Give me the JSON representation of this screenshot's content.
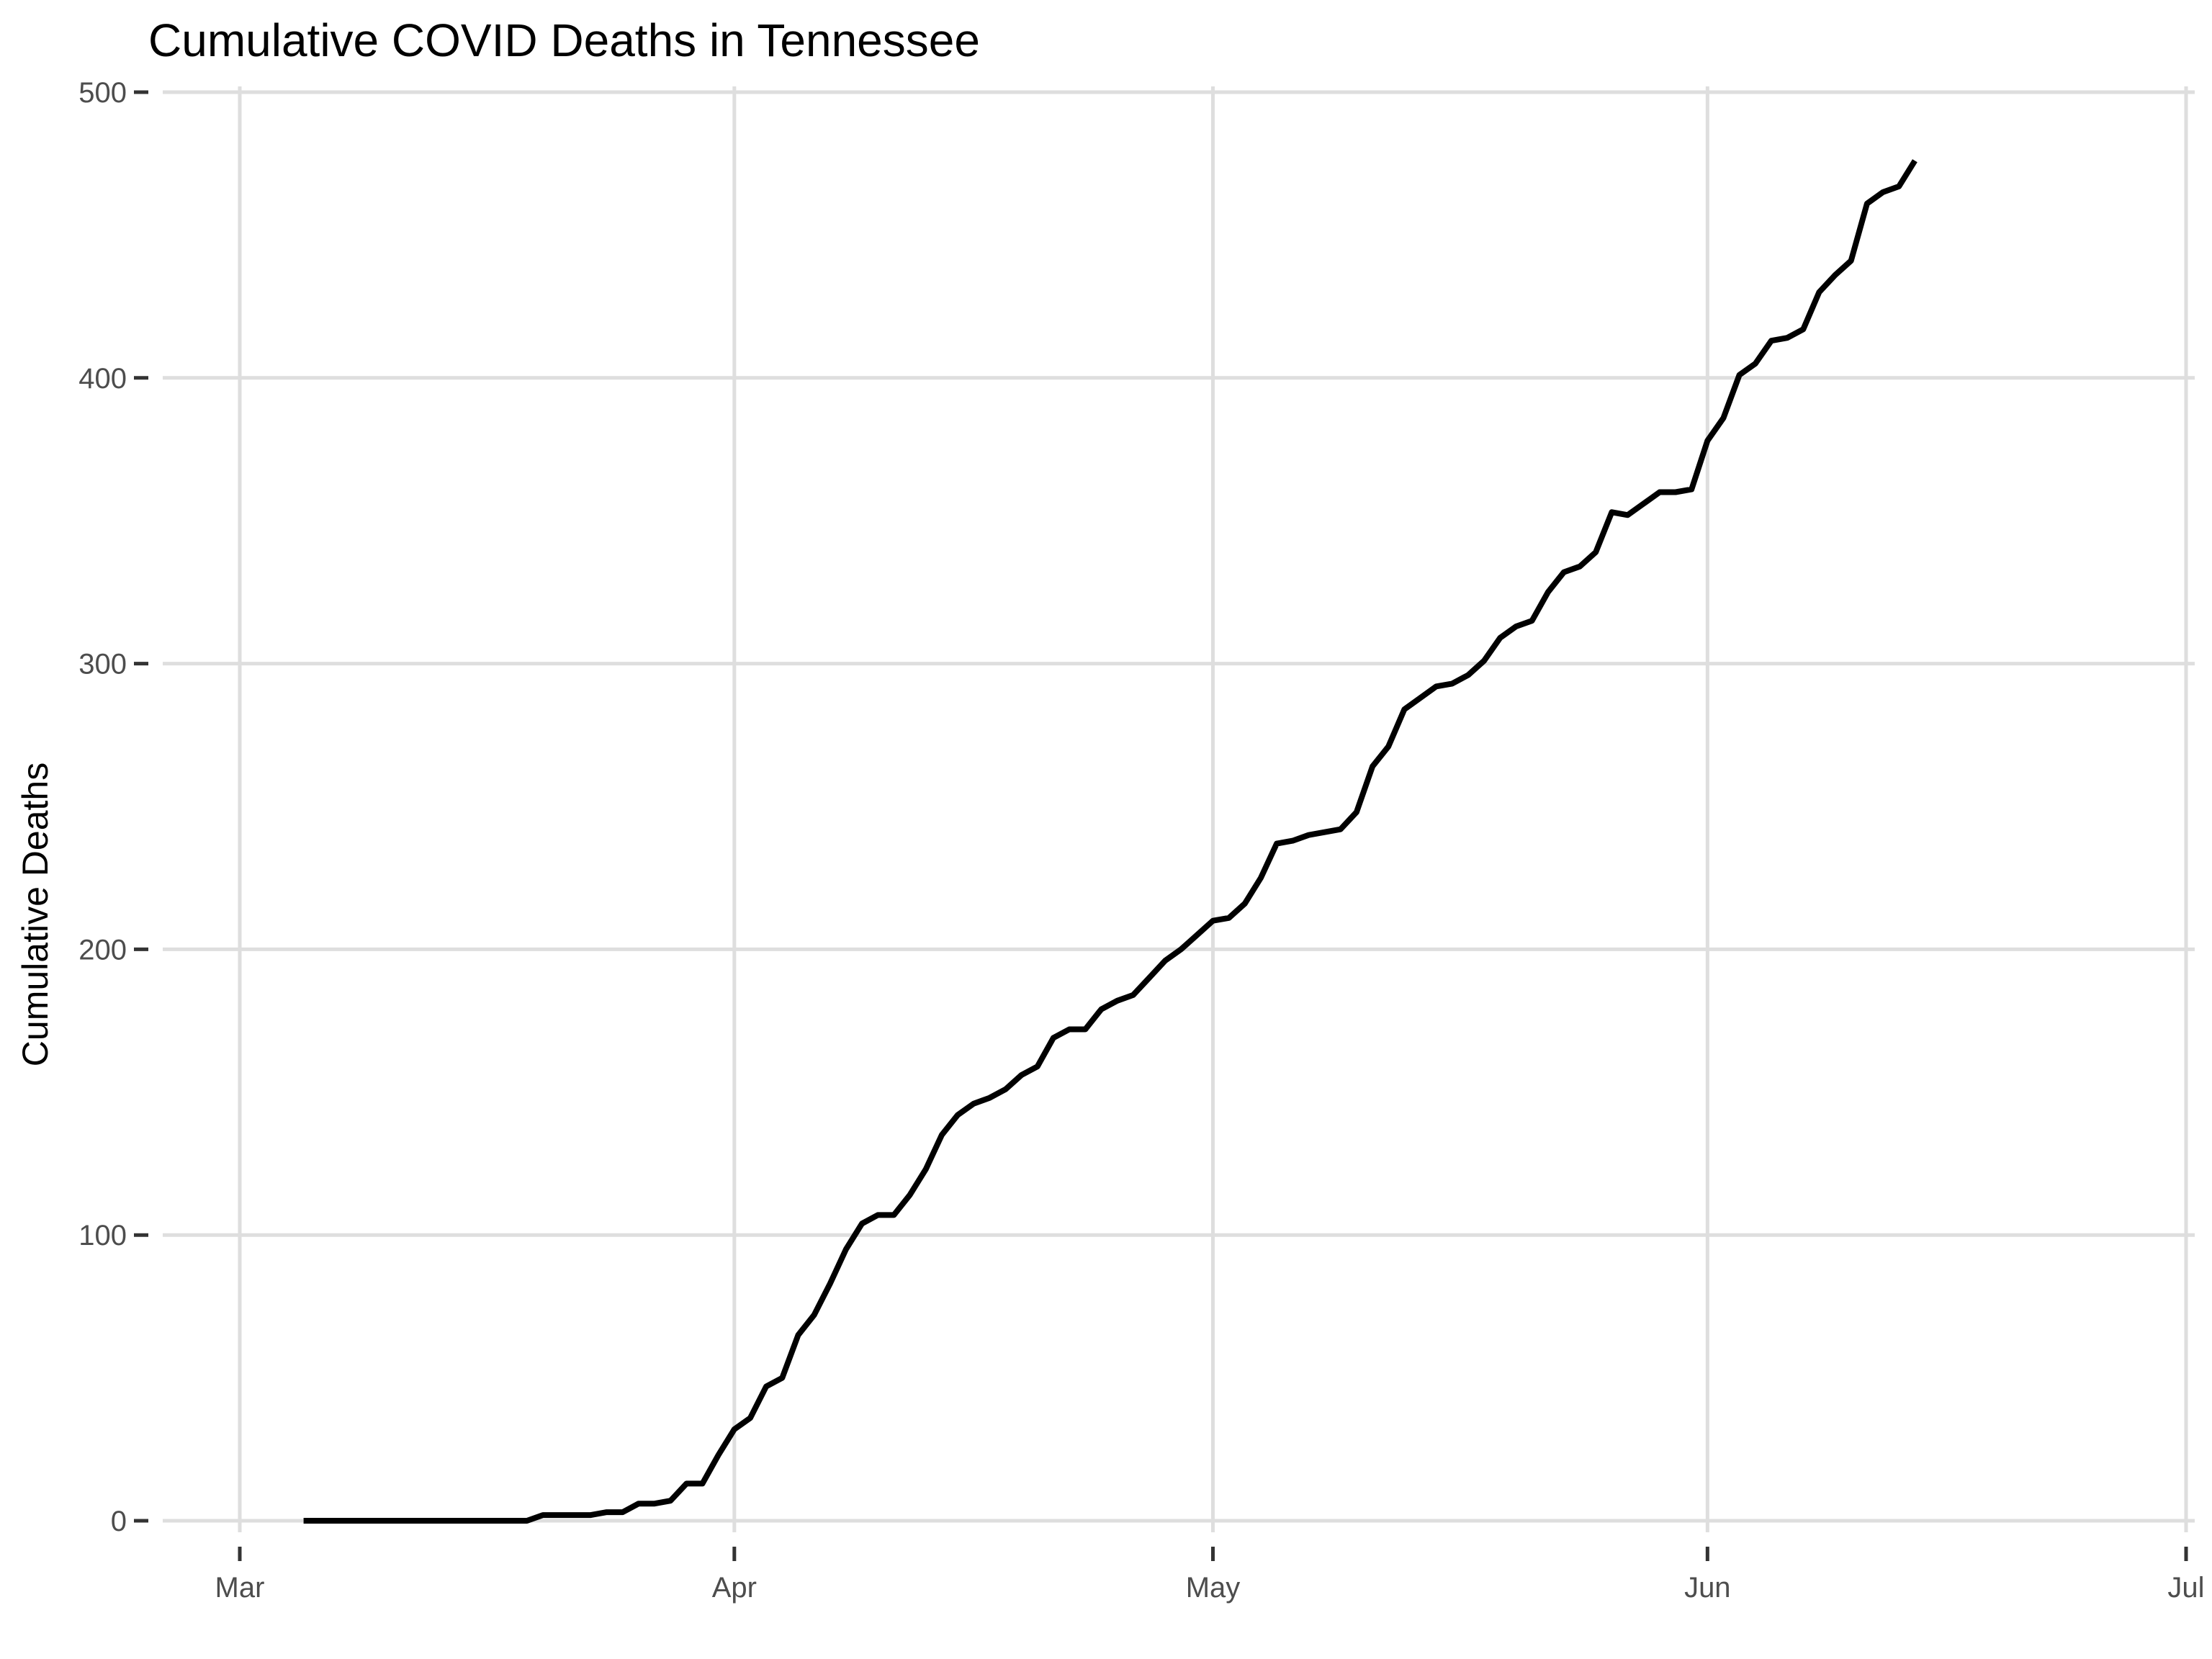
{
  "chart_data": {
    "type": "line",
    "title": "Cumulative COVID Deaths in Tennessee",
    "xlabel": "",
    "ylabel": "Cumulative Deaths",
    "x_axis": {
      "type": "date",
      "range": [
        "2020-03-01",
        "2020-07-01"
      ],
      "ticks": [
        {
          "date": "2020-03-01",
          "label": "Mar"
        },
        {
          "date": "2020-04-01",
          "label": "Apr"
        },
        {
          "date": "2020-05-01",
          "label": "May"
        },
        {
          "date": "2020-06-01",
          "label": "Jun"
        },
        {
          "date": "2020-07-01",
          "label": "Jul"
        }
      ]
    },
    "y_axis": {
      "range": [
        0,
        500
      ],
      "ticks": [
        0,
        100,
        200,
        300,
        400,
        500
      ]
    },
    "grid": true,
    "legend": "none",
    "colors": {
      "line": "#000000",
      "grid": "#dedede",
      "background": "#ffffff"
    },
    "series": [
      {
        "x": [
          "2020-03-05",
          "2020-03-06",
          "2020-03-07",
          "2020-03-08",
          "2020-03-09",
          "2020-03-10",
          "2020-03-11",
          "2020-03-12",
          "2020-03-13",
          "2020-03-14",
          "2020-03-15",
          "2020-03-16",
          "2020-03-17",
          "2020-03-18",
          "2020-03-19",
          "2020-03-20",
          "2020-03-21",
          "2020-03-22",
          "2020-03-23",
          "2020-03-24",
          "2020-03-25",
          "2020-03-26",
          "2020-03-27",
          "2020-03-28",
          "2020-03-29",
          "2020-03-30",
          "2020-03-31",
          "2020-04-01",
          "2020-04-02",
          "2020-04-03",
          "2020-04-04",
          "2020-04-05",
          "2020-04-06",
          "2020-04-07",
          "2020-04-08",
          "2020-04-09",
          "2020-04-10",
          "2020-04-11",
          "2020-04-12",
          "2020-04-13",
          "2020-04-14",
          "2020-04-15",
          "2020-04-16",
          "2020-04-17",
          "2020-04-18",
          "2020-04-19",
          "2020-04-20",
          "2020-04-21",
          "2020-04-22",
          "2020-04-23",
          "2020-04-24",
          "2020-04-25",
          "2020-04-26",
          "2020-04-27",
          "2020-04-28",
          "2020-04-29",
          "2020-04-30",
          "2020-05-01",
          "2020-05-02",
          "2020-05-03",
          "2020-05-04",
          "2020-05-05",
          "2020-05-06",
          "2020-05-07",
          "2020-05-08",
          "2020-05-09",
          "2020-05-10",
          "2020-05-11",
          "2020-05-12",
          "2020-05-13",
          "2020-05-14",
          "2020-05-15",
          "2020-05-16",
          "2020-05-17",
          "2020-05-18",
          "2020-05-19",
          "2020-05-20",
          "2020-05-21",
          "2020-05-22",
          "2020-05-23",
          "2020-05-24",
          "2020-05-25",
          "2020-05-26",
          "2020-05-27",
          "2020-05-28",
          "2020-05-29",
          "2020-05-30",
          "2020-05-31",
          "2020-06-01",
          "2020-06-02",
          "2020-06-03",
          "2020-06-04",
          "2020-06-05",
          "2020-06-06",
          "2020-06-07",
          "2020-06-08",
          "2020-06-09",
          "2020-06-10",
          "2020-06-11",
          "2020-06-12",
          "2020-06-13",
          "2020-06-14"
        ],
        "values": [
          0,
          0,
          0,
          0,
          0,
          0,
          0,
          0,
          0,
          0,
          0,
          0,
          0,
          0,
          0,
          2,
          2,
          2,
          2,
          3,
          3,
          6,
          6,
          7,
          13,
          13,
          23,
          32,
          36,
          47,
          50,
          65,
          72,
          83,
          95,
          104,
          107,
          107,
          114,
          123,
          135,
          142,
          146,
          148,
          151,
          156,
          159,
          169,
          172,
          172,
          179,
          182,
          184,
          190,
          196,
          200,
          205,
          210,
          211,
          216,
          225,
          237,
          238,
          240,
          241,
          242,
          248,
          264,
          271,
          284,
          288,
          292,
          293,
          296,
          301,
          309,
          313,
          315,
          325,
          332,
          334,
          339,
          353,
          352,
          356,
          360,
          360,
          361,
          378,
          386,
          401,
          405,
          413,
          414,
          417,
          430,
          436,
          441,
          461,
          465,
          467,
          476
        ]
      }
    ]
  }
}
